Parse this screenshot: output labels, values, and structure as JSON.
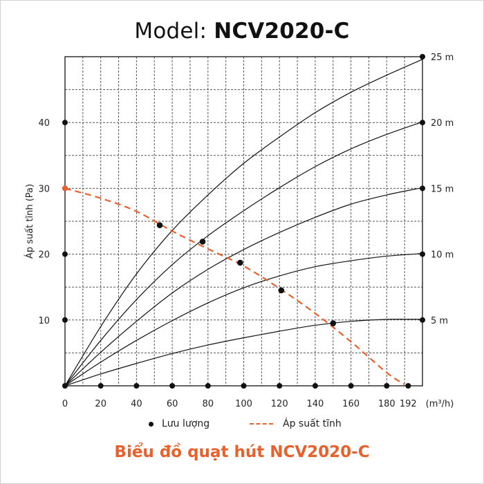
{
  "title_prefix": "Model:",
  "title_model": "NCV2020-C",
  "footer_title": "Biểu đồ quạt hút NCV2020-C",
  "legend": {
    "flow_label": "Lưu lượng",
    "pressure_label": "Áp suất tĩnh"
  },
  "colors": {
    "pressure_line": "#e8602c",
    "curves": "#111111",
    "grid": "#555555",
    "footer_title": "#e8602c"
  },
  "chart_data": {
    "type": "line",
    "title": "Model: NCV2020-C",
    "ylabel": "Áp suất tĩnh (Pa)",
    "xunit": "(m³/h)",
    "xlim": [
      0,
      200
    ],
    "ylim": [
      0,
      50
    ],
    "x_ticks": [
      "0",
      "20",
      "40",
      "60",
      "80",
      "100",
      "120",
      "140",
      "160",
      "180",
      "192"
    ],
    "x_tick_values": [
      0,
      20,
      40,
      60,
      80,
      100,
      120,
      140,
      160,
      180,
      192
    ],
    "y_ticks": [
      "10",
      "20",
      "30",
      "40"
    ],
    "y_tick_values": [
      10,
      20,
      30,
      40
    ],
    "right_axis_labels": [
      "5 m",
      "10 m",
      "15 m",
      "20 m",
      "25 m"
    ],
    "right_axis_values": [
      10,
      20,
      30,
      40,
      50
    ],
    "grid": true,
    "series": [
      {
        "name": "5 m",
        "x": [
          0,
          20,
          40,
          60,
          80,
          100,
          120,
          140,
          160,
          180,
          200
        ],
        "y": [
          0,
          1.8,
          3.4,
          4.9,
          6.2,
          7.3,
          8.3,
          9.2,
          9.8,
          10.1,
          10.1
        ]
      },
      {
        "name": "10 m",
        "x": [
          0,
          20,
          40,
          60,
          80,
          100,
          120,
          140,
          160,
          180,
          200
        ],
        "y": [
          0,
          3.6,
          6.9,
          9.9,
          12.6,
          14.9,
          16.7,
          18.1,
          19.0,
          19.7,
          20.1
        ]
      },
      {
        "name": "15 m",
        "x": [
          0,
          20,
          40,
          60,
          80,
          100,
          120,
          140,
          160,
          180,
          200
        ],
        "y": [
          0,
          5.1,
          9.8,
          14.1,
          17.7,
          20.7,
          23.3,
          25.6,
          27.6,
          29.0,
          30.1
        ]
      },
      {
        "name": "20 m",
        "x": [
          0,
          20,
          40,
          60,
          80,
          100,
          120,
          140,
          160,
          180,
          200
        ],
        "y": [
          0,
          6.9,
          13.1,
          18.4,
          22.8,
          26.6,
          30.1,
          33.3,
          36.0,
          38.2,
          40.1
        ]
      },
      {
        "name": "25 m",
        "x": [
          0,
          20,
          40,
          60,
          80,
          100,
          120,
          140,
          160,
          180,
          200
        ],
        "y": [
          0,
          9.0,
          17.0,
          23.6,
          29.0,
          33.8,
          37.8,
          41.5,
          44.6,
          47.2,
          49.6
        ]
      },
      {
        "name": "Áp suất tĩnh",
        "style": "dashed",
        "x": [
          0,
          20,
          40,
          60,
          80,
          100,
          120,
          140,
          160,
          180,
          190
        ],
        "y": [
          30.0,
          28.5,
          26.5,
          23.5,
          20.8,
          18.2,
          14.8,
          11.0,
          6.7,
          2.0,
          0.2
        ]
      }
    ],
    "intersection_points": [
      {
        "x": 53,
        "y": 24.4
      },
      {
        "x": 77,
        "y": 21.9
      },
      {
        "x": 98,
        "y": 18.7
      },
      {
        "x": 121,
        "y": 14.5
      },
      {
        "x": 150,
        "y": 9.5
      }
    ],
    "x_axis_markers": [
      20,
      40,
      60,
      80,
      100,
      120,
      140,
      160,
      180,
      192
    ],
    "y_axis_markers": [
      10,
      20,
      30,
      40
    ]
  }
}
